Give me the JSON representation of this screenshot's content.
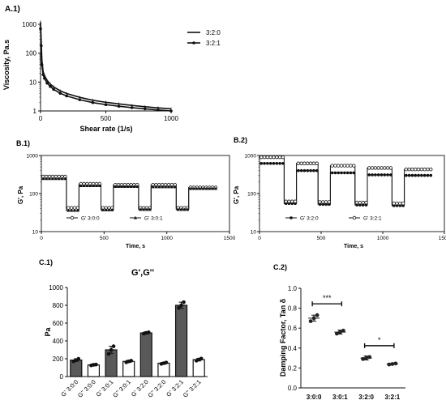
{
  "panels": {
    "a1": {
      "label": "A.1)"
    },
    "b1": {
      "label": "B.1)"
    },
    "b2": {
      "label": "B.2)"
    },
    "c1": {
      "label": "C.1)"
    },
    "c2": {
      "label": "C.2)"
    }
  },
  "chart_data": [
    {
      "id": "a1",
      "type": "line",
      "xlabel": "Shear rate (1/s)",
      "ylabel": "Viscosity, Pa.s",
      "xlim": [
        0,
        1000
      ],
      "ylim": [
        1,
        1000
      ],
      "yscale": "log",
      "x_ticks": [
        "0",
        "500",
        "1000"
      ],
      "y_ticks": [
        "1",
        "10",
        "100",
        "1000"
      ],
      "legend_position": "top-right",
      "series": [
        {
          "name": "3:2:0",
          "marker": "none",
          "x": [
            0,
            5,
            10,
            20,
            30,
            50,
            75,
            100,
            150,
            200,
            300,
            400,
            500,
            600,
            700,
            800,
            900,
            1000
          ],
          "y": [
            1200,
            300,
            60,
            23,
            17,
            11.5,
            8.5,
            6.8,
            5.0,
            4.0,
            2.95,
            2.35,
            2.0,
            1.75,
            1.55,
            1.4,
            1.28,
            1.18
          ]
        },
        {
          "name": "3:2:1",
          "marker": "circle",
          "x": [
            0,
            5,
            10,
            20,
            30,
            50,
            75,
            100,
            150,
            200,
            300,
            400,
            500,
            600,
            700,
            800,
            900,
            1000
          ],
          "y": [
            700,
            180,
            40,
            18,
            13.5,
            9.2,
            7.0,
            5.6,
            4.1,
            3.3,
            2.45,
            1.95,
            1.65,
            1.45,
            1.3,
            1.18,
            1.08,
            1.0
          ]
        }
      ]
    },
    {
      "id": "b1",
      "type": "line",
      "xlabel": "Time, s",
      "ylabel": "G', Pa",
      "xlim": [
        0,
        1500
      ],
      "ylim": [
        10,
        1000
      ],
      "yscale": "log",
      "x_ticks": [
        "0",
        "500",
        "1000",
        "1500"
      ],
      "y_ticks": [
        "10",
        "100",
        "1000"
      ],
      "legend_position": "bottom",
      "segments": [
        [
          0,
          200
        ],
        [
          200,
          300
        ],
        [
          300,
          475
        ],
        [
          475,
          575
        ],
        [
          575,
          775
        ],
        [
          775,
          875
        ],
        [
          875,
          1075
        ],
        [
          1075,
          1175
        ],
        [
          1175,
          1400
        ]
      ],
      "series": [
        {
          "name": "G' 3:0:0",
          "marker": "open-circle",
          "levels": [
            280,
            42,
            180,
            42,
            170,
            42,
            170,
            42,
            145
          ]
        },
        {
          "name": "G' 3:0:1",
          "marker": "triangle",
          "levels": [
            245,
            36,
            160,
            37,
            152,
            38,
            150,
            38,
            135
          ]
        }
      ]
    },
    {
      "id": "b2",
      "type": "line",
      "xlabel": "Time, s",
      "ylabel": "G', Pa",
      "xlim": [
        0,
        1500
      ],
      "ylim": [
        10,
        1000
      ],
      "yscale": "log",
      "x_ticks": [
        "0",
        "500",
        "1000",
        "1500"
      ],
      "y_ticks": [
        "10",
        "100",
        "1000"
      ],
      "legend_position": "bottom",
      "segments": [
        [
          0,
          200
        ],
        [
          200,
          300
        ],
        [
          300,
          475
        ],
        [
          475,
          575
        ],
        [
          575,
          775
        ],
        [
          775,
          875
        ],
        [
          875,
          1075
        ],
        [
          1075,
          1175
        ],
        [
          1175,
          1400
        ]
      ],
      "series": [
        {
          "name": "G' 3:2:0",
          "marker": "filled-circle",
          "levels": [
            620,
            55,
            400,
            52,
            350,
            50,
            310,
            48,
            300
          ]
        },
        {
          "name": "G' 3:2:1",
          "marker": "open-circle",
          "levels": [
            900,
            62,
            620,
            60,
            540,
            58,
            470,
            55,
            430
          ]
        }
      ]
    },
    {
      "id": "c1",
      "type": "bar",
      "title": "G',G''",
      "ylabel": "Pa",
      "ylim": [
        0,
        1000
      ],
      "y_ticks": [
        "0",
        "200",
        "400",
        "600",
        "800",
        "1000"
      ],
      "categories": [
        "G' 3:0:0",
        "G'' 3:0:0",
        "G' 3:0:1",
        "G'' 3:0:1",
        "G' 3:2:0",
        "G'' 3:2:0",
        "G' 3:2:1",
        "G'' 3:2:1"
      ],
      "values": [
        185,
        130,
        300,
        170,
        490,
        150,
        800,
        190
      ],
      "errors": [
        15,
        10,
        40,
        12,
        12,
        10,
        35,
        15
      ],
      "points": [
        [
          170,
          185,
          200
        ],
        [
          125,
          132,
          135
        ],
        [
          255,
          300,
          340
        ],
        [
          160,
          170,
          178
        ],
        [
          482,
          490,
          497
        ],
        [
          142,
          150,
          158
        ],
        [
          770,
          800,
          835
        ],
        [
          178,
          190,
          202
        ]
      ],
      "fills": [
        "#595959",
        "#ffffff",
        "#595959",
        "#ffffff",
        "#595959",
        "#ffffff",
        "#595959",
        "#ffffff"
      ]
    },
    {
      "id": "c2",
      "type": "scatter",
      "ylabel": "Damping Factor, Tan δ",
      "ylim": [
        0,
        1.0
      ],
      "y_ticks": [
        "0.0",
        "0.2",
        "0.4",
        "0.6",
        "0.8",
        "1.0"
      ],
      "categories": [
        "3:0:0",
        "3:0:1",
        "3:2:0",
        "3:2:1"
      ],
      "means": [
        0.7,
        0.56,
        0.3,
        0.24
      ],
      "errors": [
        0.03,
        0.02,
        0.02,
        0.005
      ],
      "points": [
        [
          0.67,
          0.7,
          0.73
        ],
        [
          0.545,
          0.56,
          0.575
        ],
        [
          0.29,
          0.3,
          0.31
        ],
        [
          0.235,
          0.24,
          0.245
        ]
      ],
      "significance": [
        {
          "pair": [
            "3:0:0",
            "3:0:1"
          ],
          "label": "***"
        },
        {
          "pair": [
            "3:2:0",
            "3:2:1"
          ],
          "label": "*"
        }
      ]
    }
  ]
}
